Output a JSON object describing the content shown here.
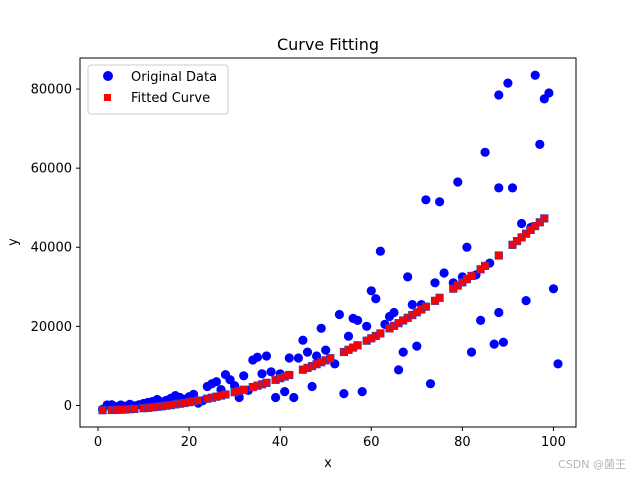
{
  "chart_data": {
    "type": "scatter",
    "title": "Curve Fitting",
    "xlabel": "x",
    "ylabel": "y",
    "xlim": [
      -3.95,
      104.95
    ],
    "ylim": [
      -5450,
      87850
    ],
    "xticks": [
      0,
      20,
      40,
      60,
      80,
      100
    ],
    "yticks": [
      0,
      20000,
      40000,
      60000,
      80000
    ],
    "ytick_labels": [
      "0",
      "20000",
      "40000",
      "60000",
      "80000"
    ],
    "legend_position": "upper-left",
    "series": [
      {
        "name": "Original Data",
        "marker": "circle",
        "color": "#0000ff",
        "points": [
          [
            1,
            -1000
          ],
          [
            2,
            100
          ],
          [
            3,
            200
          ],
          [
            4,
            -300
          ],
          [
            5,
            100
          ],
          [
            6,
            -200
          ],
          [
            7,
            300
          ],
          [
            8,
            -100
          ],
          [
            9,
            200
          ],
          [
            10,
            500
          ],
          [
            11,
            800
          ],
          [
            12,
            1000
          ],
          [
            13,
            1500
          ],
          [
            14,
            900
          ],
          [
            15,
            1300
          ],
          [
            16,
            1800
          ],
          [
            17,
            2500
          ],
          [
            18,
            2000
          ],
          [
            19,
            1500
          ],
          [
            20,
            2200
          ],
          [
            21,
            2800
          ],
          [
            22,
            600
          ],
          [
            23,
            1200
          ],
          [
            24,
            4800
          ],
          [
            25,
            5500
          ],
          [
            26,
            6000
          ],
          [
            27,
            4000
          ],
          [
            28,
            7800
          ],
          [
            29,
            6500
          ],
          [
            30,
            5000
          ],
          [
            31,
            2000
          ],
          [
            32,
            7500
          ],
          [
            33,
            3800
          ],
          [
            34,
            11500
          ],
          [
            35,
            12200
          ],
          [
            36,
            8000
          ],
          [
            37,
            12500
          ],
          [
            38,
            8500
          ],
          [
            39,
            2000
          ],
          [
            40,
            8000
          ],
          [
            41,
            3500
          ],
          [
            42,
            12000
          ],
          [
            43,
            2000
          ],
          [
            44,
            12000
          ],
          [
            45,
            16500
          ],
          [
            46,
            13500
          ],
          [
            47,
            4800
          ],
          [
            48,
            12500
          ],
          [
            49,
            19500
          ],
          [
            50,
            14000
          ],
          [
            52,
            10500
          ],
          [
            53,
            23000
          ],
          [
            54,
            3000
          ],
          [
            55,
            17500
          ],
          [
            56,
            22000
          ],
          [
            57,
            21500
          ],
          [
            58,
            3500
          ],
          [
            59,
            20000
          ],
          [
            60,
            29000
          ],
          [
            61,
            27000
          ],
          [
            62,
            39000
          ],
          [
            63,
            20500
          ],
          [
            64,
            22500
          ],
          [
            65,
            23500
          ],
          [
            66,
            9000
          ],
          [
            67,
            13500
          ],
          [
            68,
            32500
          ],
          [
            69,
            25500
          ],
          [
            70,
            15000
          ],
          [
            71,
            25500
          ],
          [
            72,
            52000
          ],
          [
            73,
            5500
          ],
          [
            74,
            31000
          ],
          [
            75,
            51500
          ],
          [
            76,
            33500
          ],
          [
            78,
            31000
          ],
          [
            79,
            56500
          ],
          [
            80,
            32500
          ],
          [
            81,
            40000
          ],
          [
            82,
            13500
          ],
          [
            83,
            33000
          ],
          [
            84,
            21500
          ],
          [
            85,
            64000
          ],
          [
            86,
            36000
          ],
          [
            87,
            15500
          ],
          [
            88,
            78500
          ],
          [
            89,
            16000
          ],
          [
            90,
            81500
          ],
          [
            91,
            55000
          ],
          [
            93,
            46000
          ],
          [
            94,
            26500
          ],
          [
            95,
            45000
          ],
          [
            96,
            83500
          ],
          [
            97,
            66000
          ],
          [
            98,
            77500
          ],
          [
            99,
            79000
          ],
          [
            100,
            29500
          ],
          [
            101,
            10500
          ],
          [
            88,
            23500
          ],
          [
            88,
            55000
          ]
        ]
      },
      {
        "name": "Fitted Curve",
        "marker": "square",
        "color": "#ff0000",
        "xs": [
          1,
          3,
          4,
          5,
          6,
          7,
          8,
          10,
          11,
          12,
          13,
          14,
          15,
          16,
          17,
          18,
          19,
          20,
          21,
          22,
          24,
          25,
          26,
          27,
          28,
          30,
          31,
          32,
          34,
          35,
          36,
          37,
          39,
          40,
          41,
          42,
          45,
          46,
          47,
          48,
          49,
          50,
          51,
          54,
          55,
          56,
          57,
          59,
          60,
          61,
          62,
          64,
          65,
          66,
          67,
          68,
          69,
          70,
          71,
          72,
          74,
          75,
          78,
          79,
          80,
          81,
          82,
          84,
          85,
          88,
          91,
          92,
          93,
          94,
          95,
          96,
          97,
          98
        ],
        "curve": {
          "c0": -1200,
          "c1": 0,
          "c2": 5.05
        }
      }
    ]
  },
  "watermark": "CSDN @菌王"
}
